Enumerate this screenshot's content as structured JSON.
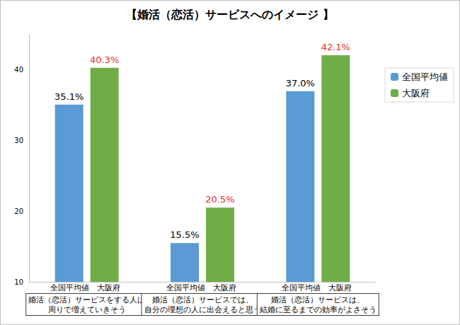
{
  "chart_data": {
    "type": "bar",
    "title": "【婚活（恋活）サービスへのイメージ 】",
    "categories": [
      "婚活（恋活）サービスをする人は\n周りで増えていきそう",
      "婚活（恋活）サービスでは、\n自分の理想の人に出会えると思う",
      "婚活（恋活）サービスは、\n結婚に至るまでの効率がよさそう"
    ],
    "series": [
      {
        "name": "全国平均値",
        "color": "#5b9bd5",
        "values": [
          35.1,
          15.5,
          37.0
        ],
        "value_labels": [
          "35.1%",
          "15.5%",
          "37.0%"
        ]
      },
      {
        "name": "大阪府",
        "color": "#70ad47",
        "values": [
          40.3,
          20.5,
          42.1
        ],
        "value_labels": [
          "40.3%",
          "20.5%",
          "42.1%"
        ]
      }
    ],
    "ylim": [
      10,
      45
    ],
    "yticks": [
      10,
      20,
      30,
      40
    ],
    "grid": false,
    "legend": "upper right",
    "data_labels": true
  }
}
